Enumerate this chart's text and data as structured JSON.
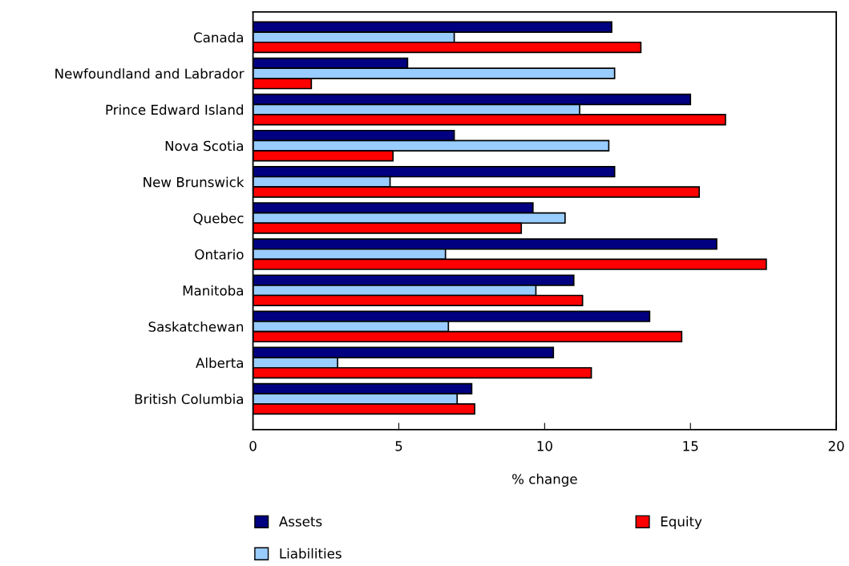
{
  "chart_data": {
    "type": "bar",
    "orientation": "horizontal",
    "xlabel": "% change",
    "categories": [
      "Canada",
      "Newfoundland and Labrador",
      "Prince Edward Island",
      "Nova Scotia",
      "New Brunswick",
      "Quebec",
      "Ontario",
      "Manitoba",
      "Saskatchewan",
      "Alberta",
      "British Columbia"
    ],
    "series": [
      {
        "name": "Assets",
        "color": "#000080",
        "values": [
          12.3,
          5.3,
          15.0,
          6.9,
          12.4,
          9.6,
          15.9,
          11.0,
          13.6,
          10.3,
          7.5
        ]
      },
      {
        "name": "Liabilities",
        "color": "#99ccff",
        "values": [
          6.9,
          12.4,
          11.2,
          12.2,
          4.7,
          10.7,
          6.6,
          9.7,
          6.7,
          2.9,
          7.0
        ]
      },
      {
        "name": "Equity",
        "color": "#ff0000",
        "values": [
          13.3,
          2.0,
          16.2,
          4.8,
          15.3,
          9.2,
          17.6,
          11.3,
          14.7,
          11.6,
          7.6
        ]
      }
    ],
    "xlim": [
      0,
      20
    ],
    "xticks": [
      0,
      5,
      10,
      15,
      20
    ],
    "grid": false,
    "legend": "bottom"
  }
}
